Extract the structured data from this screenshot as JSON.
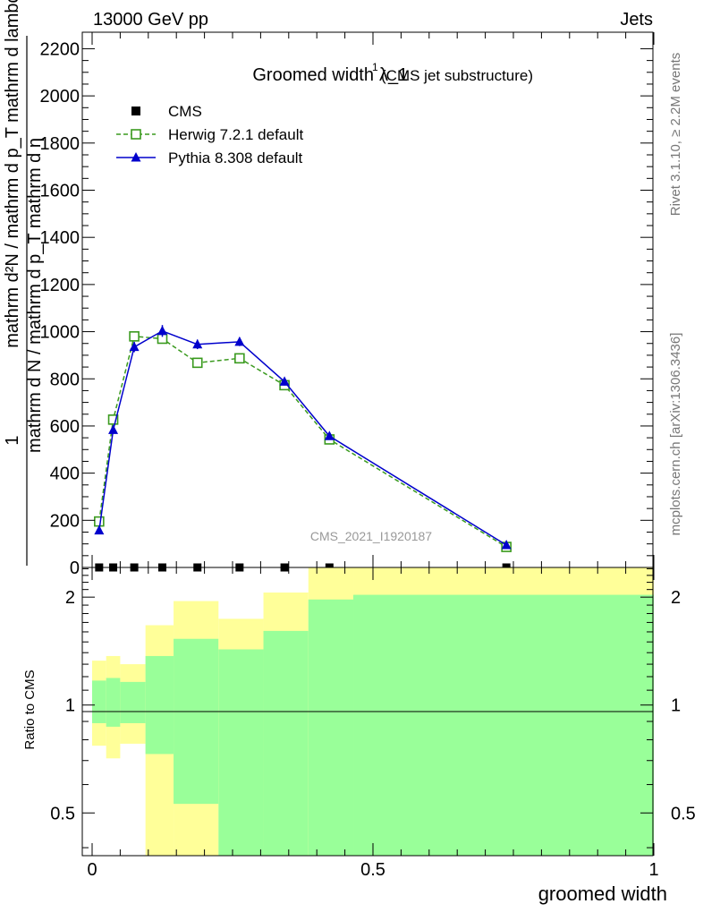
{
  "header": {
    "left": "13000 GeV pp",
    "right": "Jets"
  },
  "side_texts": {
    "rivet": "Rivet 3.1.10, ≥ 2.2M events",
    "mcplots": "mcplots.cern.ch [arXiv:1306.3436]"
  },
  "chart_data": [
    {
      "type": "line",
      "title": "Groomed width",
      "title_symbol": "λ_1",
      "title_superscript": "1",
      "subtitle": "(CMS jet substructure)",
      "watermark": "CMS_2021_I1920187",
      "ylabel": {
        "numerator": "1",
        "denominator": "mathrm d N / mathrm d p_T mathrm d η",
        "inner_fraction": "mathrm d²N / mathrm d p_T mathrm d lambda"
      },
      "ylim": [
        0,
        2270
      ],
      "xlim": [
        -0.01,
        1.0
      ],
      "y_ticks": [
        0,
        200,
        400,
        600,
        800,
        1000,
        1200,
        1400,
        1600,
        1800,
        2000,
        2200
      ],
      "y_tick_labels": [
        "0",
        "200",
        "400",
        "600",
        "800",
        "1000",
        "1200",
        "1400",
        "1600",
        "1800",
        "2000",
        "2200"
      ],
      "legend_position": "top-left",
      "series": [
        {
          "name": "CMS",
          "color": "#000000",
          "marker": "square",
          "x": [
            0.0125,
            0.0375,
            0.075,
            0.125,
            0.1875,
            0.2625,
            0.3425,
            0.4225,
            0.7375
          ],
          "y": [
            0,
            0,
            0,
            0,
            0,
            0,
            0,
            0,
            0
          ]
        },
        {
          "name": "Herwig 7.2.1 default",
          "color": "#3a9a1e",
          "marker": "open-square",
          "dashed": true,
          "x": [
            0.0125,
            0.0375,
            0.075,
            0.125,
            0.1875,
            0.2625,
            0.3425,
            0.4225,
            0.7375
          ],
          "y": [
            195,
            627,
            980,
            970,
            868,
            887,
            773,
            543,
            87
          ]
        },
        {
          "name": "Pythia 8.308 default",
          "color": "#0000cc",
          "marker": "triangle",
          "dashed": false,
          "x": [
            0.0125,
            0.0375,
            0.075,
            0.125,
            0.1875,
            0.2625,
            0.3425,
            0.4225,
            0.7375
          ],
          "y": [
            157,
            583,
            935,
            1003,
            946,
            957,
            788,
            557,
            95
          ],
          "yerr": [
            8,
            12,
            22,
            25,
            20,
            18,
            16,
            12,
            6
          ]
        }
      ]
    },
    {
      "type": "area",
      "ylabel": "Ratio to CMS",
      "xlabel": "groomed width",
      "log_y": true,
      "ylim": [
        0.38,
        2.42
      ],
      "xlim": [
        -0.01,
        1.0
      ],
      "y_ticks": [
        0.5,
        1,
        2
      ],
      "y_tick_labels": [
        "0.5",
        "1",
        "2"
      ],
      "x_ticks": [
        0,
        0.5,
        1
      ],
      "x_tick_labels": [
        "0",
        "0.5",
        "1"
      ],
      "reference_line": 1,
      "bins": [
        {
          "x0": 0.0,
          "x1": 0.025,
          "inner": [
            0.89,
            1.17
          ],
          "outer": [
            0.77,
            1.33
          ]
        },
        {
          "x0": 0.025,
          "x1": 0.05,
          "inner": [
            0.87,
            1.19
          ],
          "outer": [
            0.71,
            1.37
          ]
        },
        {
          "x0": 0.05,
          "x1": 0.095,
          "inner": [
            0.89,
            1.16
          ],
          "outer": [
            0.78,
            1.3
          ]
        },
        {
          "x0": 0.095,
          "x1": 0.145,
          "inner": [
            0.73,
            1.37
          ],
          "outer": [
            0.38,
            1.67
          ]
        },
        {
          "x0": 0.145,
          "x1": 0.225,
          "inner": [
            0.53,
            1.53
          ],
          "outer": [
            0.38,
            1.95
          ]
        },
        {
          "x0": 0.225,
          "x1": 0.305,
          "inner": [
            0.38,
            1.43
          ],
          "outer": [
            0.38,
            1.74
          ]
        },
        {
          "x0": 0.305,
          "x1": 0.385,
          "inner": [
            0.38,
            1.61
          ],
          "outer": [
            0.38,
            2.06
          ]
        },
        {
          "x0": 0.385,
          "x1": 0.465,
          "inner": [
            0.38,
            1.97
          ],
          "outer": [
            0.38,
            2.42
          ]
        },
        {
          "x0": 0.465,
          "x1": 1.0,
          "inner": [
            0.38,
            2.03
          ],
          "outer": [
            0.38,
            2.42
          ]
        }
      ],
      "colors": {
        "inner": "#99ff99",
        "outer": "#ffff99"
      }
    }
  ]
}
